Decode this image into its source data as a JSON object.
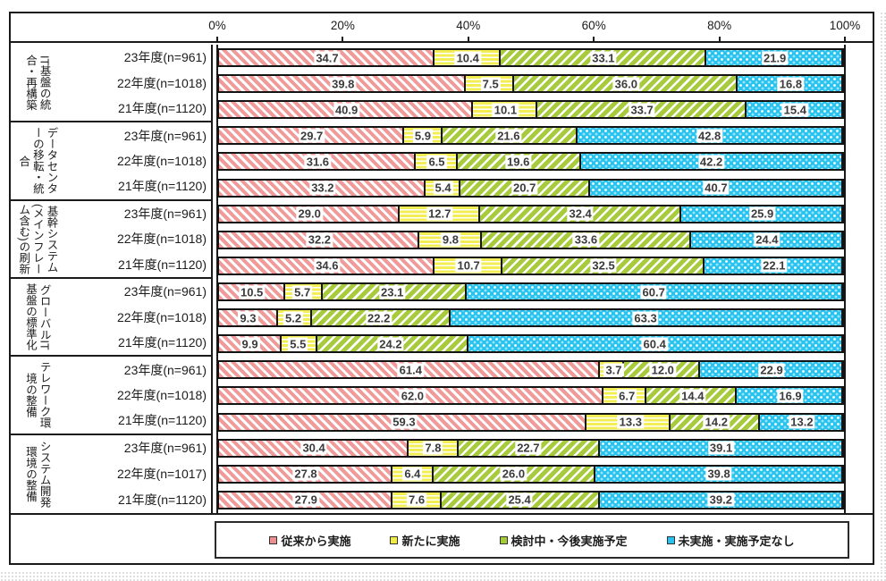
{
  "axis": {
    "ticks": [
      "0%",
      "20%",
      "40%",
      "60%",
      "80%",
      "100%"
    ]
  },
  "legend": {
    "items": [
      {
        "label": "従来から実施",
        "color": "#ee8f8f"
      },
      {
        "label": "新たに実施",
        "color": "#f0ec45"
      },
      {
        "label": "検討中・今後実施予定",
        "color": "#a5ca3a"
      },
      {
        "label": "未実施・実施予定なし",
        "color": "#29c3ef"
      }
    ]
  },
  "chart_data": {
    "type": "bar",
    "stacked": true,
    "orientation": "horizontal",
    "unit": "%",
    "xlim": [
      0,
      100
    ],
    "xticks": [
      "0%",
      "20%",
      "40%",
      "60%",
      "80%",
      "100%"
    ],
    "legend_position": "bottom",
    "series_names": [
      "従来から実施",
      "新たに実施",
      "検討中・今後実施予定",
      "未実施・実施予定なし"
    ],
    "series_keys": [
      "existing",
      "new",
      "considering",
      "none"
    ],
    "series_colors": [
      "#ee8f8f",
      "#f0ec45",
      "#a5ca3a",
      "#29c3ef"
    ],
    "series_patterns": [
      "pink-diagonal-hatch",
      "yellow-horizontal-lines",
      "green-diagonal-hatch",
      "blue-dot-checker"
    ],
    "groups": [
      {
        "category": "IT基盤の統合・再構築",
        "rows": [
          {
            "label": "23年度(n=961)",
            "values": [
              "34.7",
              "10.4",
              "33.1",
              "21.9"
            ]
          },
          {
            "label": "22年度(n=1018)",
            "values": [
              "39.8",
              "7.5",
              "36.0",
              "16.8"
            ]
          },
          {
            "label": "21年度(n=1120)",
            "values": [
              "40.9",
              "10.1",
              "33.7",
              "15.4"
            ]
          }
        ]
      },
      {
        "category": "データセンターの移転・統合",
        "rows": [
          {
            "label": "23年度(n=961)",
            "values": [
              "29.7",
              "5.9",
              "21.6",
              "42.8"
            ]
          },
          {
            "label": "22年度(n=1018)",
            "values": [
              "31.6",
              "6.5",
              "19.6",
              "42.2"
            ]
          },
          {
            "label": "21年度(n=1120)",
            "values": [
              "33.2",
              "5.4",
              "20.7",
              "40.7"
            ]
          }
        ]
      },
      {
        "category": "基幹システム(メインフレーム含む)の刷新",
        "rows": [
          {
            "label": "23年度(n=961)",
            "values": [
              "29.0",
              "12.7",
              "32.4",
              "25.9"
            ]
          },
          {
            "label": "22年度(n=1018)",
            "values": [
              "32.2",
              "9.8",
              "33.6",
              "24.4"
            ]
          },
          {
            "label": "21年度(n=1120)",
            "values": [
              "34.6",
              "10.7",
              "32.5",
              "22.1"
            ]
          }
        ]
      },
      {
        "category": "グローバルIT基盤の標準化",
        "rows": [
          {
            "label": "23年度(n=961)",
            "values": [
              "10.5",
              "5.7",
              "23.1",
              "60.7"
            ]
          },
          {
            "label": "22年度(n=1018)",
            "values": [
              "9.3",
              "5.2",
              "22.2",
              "63.3"
            ]
          },
          {
            "label": "21年度(n=1120)",
            "values": [
              "9.9",
              "5.5",
              "24.2",
              "60.4"
            ]
          }
        ]
      },
      {
        "category": "テレワーク環境の整備",
        "rows": [
          {
            "label": "23年度(n=961)",
            "values": [
              "61.4",
              "3.7",
              "12.0",
              "22.9"
            ]
          },
          {
            "label": "22年度(n=1018)",
            "values": [
              "62.0",
              "6.7",
              "14.4",
              "16.9"
            ]
          },
          {
            "label": "21年度(n=1120)",
            "values": [
              "59.3",
              "13.3",
              "14.2",
              "13.2"
            ]
          }
        ]
      },
      {
        "category": "システム開発環境の整備",
        "rows": [
          {
            "label": "23年度(n=961)",
            "values": [
              "30.4",
              "7.8",
              "22.7",
              "39.1"
            ]
          },
          {
            "label": "22年度(n=1017)",
            "values": [
              "27.8",
              "6.4",
              "26.0",
              "39.8"
            ]
          },
          {
            "label": "21年度(n=1120)",
            "values": [
              "27.9",
              "7.6",
              "25.4",
              "39.2"
            ]
          }
        ]
      }
    ]
  }
}
